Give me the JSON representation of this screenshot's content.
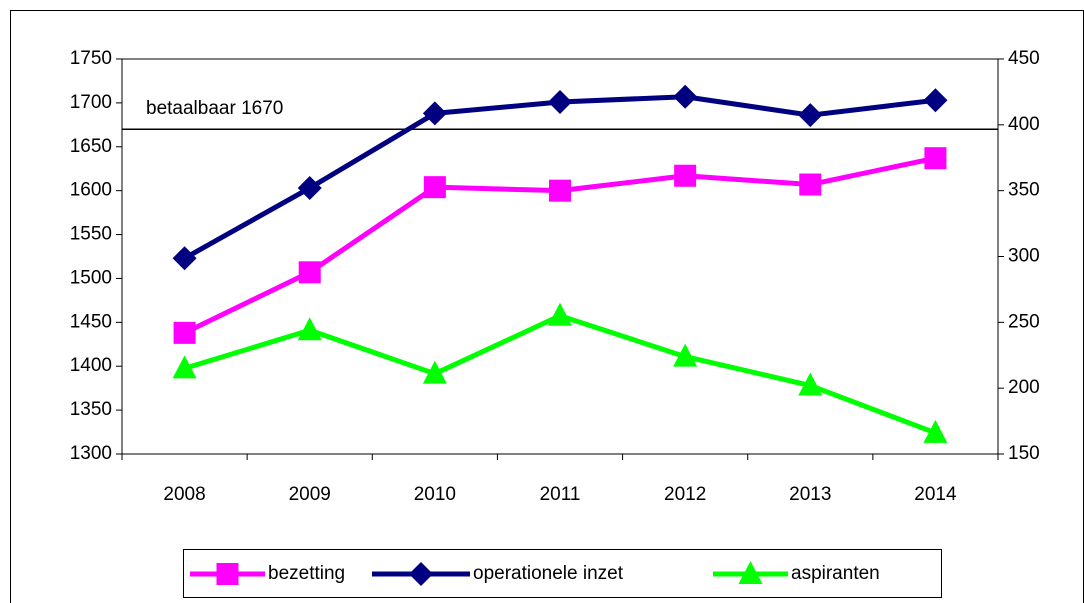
{
  "chart_data": {
    "type": "line",
    "categories": [
      "2008",
      "2009",
      "2010",
      "2011",
      "2012",
      "2013",
      "2014"
    ],
    "series": [
      {
        "name": "bezetting",
        "color": "#ff00ff",
        "marker": "square",
        "values": [
          1438,
          1507,
          1604,
          1600,
          1617,
          1607,
          1637
        ]
      },
      {
        "name": "operationele inzet",
        "color": "#000080",
        "marker": "diamond",
        "values": [
          1523,
          1603,
          1688,
          1701,
          1707,
          1686,
          1703
        ]
      },
      {
        "name": "aspiranten",
        "color": "#00ff00",
        "marker": "triangle",
        "axis": "y2",
        "values": [
          215,
          244,
          211,
          255,
          224,
          202,
          166
        ]
      }
    ],
    "reference_line": {
      "value": 1670,
      "label": "betaalbaar 1670"
    },
    "ylim": [
      1300,
      1750
    ],
    "yticks": [
      1300,
      1350,
      1400,
      1450,
      1500,
      1550,
      1600,
      1650,
      1700,
      1750
    ],
    "y2lim": [
      150,
      450
    ],
    "y2ticks": [
      150,
      200,
      250,
      300,
      350,
      400,
      450
    ],
    "legend": "bottom",
    "grid": false
  }
}
